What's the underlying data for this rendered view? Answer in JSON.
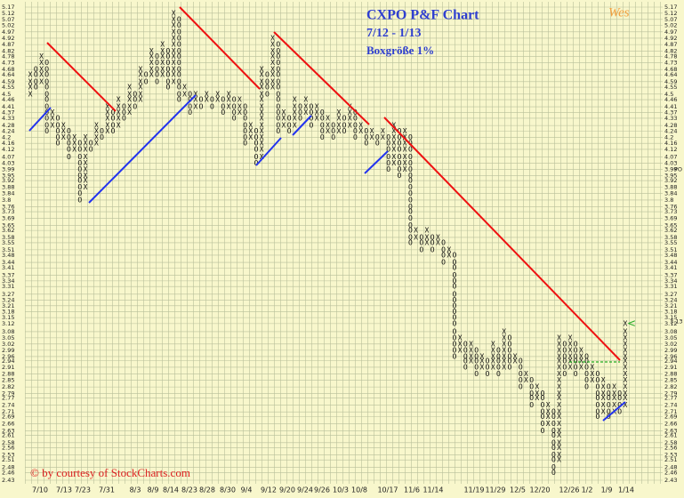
{
  "chart_data": {
    "type": "pointfigure",
    "title": "CXPO P&F Chart",
    "subtitle": "7/12 - 1/13",
    "box_size": "Boxgröße 1%",
    "logo": "Wes",
    "credit": "© by courtesy of StockCharts.com",
    "log_scale": true,
    "grid": true,
    "ylim": [
      2.43,
      5.17
    ],
    "yticks": [
      5.17,
      5.12,
      5.07,
      5.02,
      4.97,
      4.92,
      4.87,
      4.82,
      4.78,
      4.73,
      4.68,
      4.64,
      4.59,
      4.55,
      4.5,
      4.46,
      4.41,
      4.37,
      4.33,
      4.28,
      4.24,
      4.2,
      4.16,
      4.12,
      4.07,
      4.03,
      3.99,
      3.95,
      3.92,
      3.88,
      3.84,
      3.8,
      3.76,
      3.73,
      3.69,
      3.65,
      3.62,
      3.58,
      3.55,
      3.51,
      3.48,
      3.44,
      3.41,
      3.37,
      3.34,
      3.31,
      3.27,
      3.24,
      3.21,
      3.18,
      3.15,
      3.12,
      3.08,
      3.05,
      3.02,
      2.99,
      2.96,
      2.94,
      2.91,
      2.88,
      2.85,
      2.82,
      2.79,
      2.77,
      2.74,
      2.71,
      2.69,
      2.66,
      2.63,
      2.61,
      2.58,
      2.56,
      2.53,
      2.51,
      2.48,
      2.46,
      2.43
    ],
    "price_objective": {
      "value": 3.99,
      "label": "PO",
      "color": "#22aa22"
    },
    "last_price": 3.13,
    "x_labels": [
      "7/10",
      "7/13",
      "7/23",
      "7/31",
      "8/3",
      "8/9",
      "8/14",
      "8/23",
      "8/28",
      "8/30",
      "9/4",
      "9/12",
      "9/20",
      "9/24",
      "9/26",
      "10/3",
      "10/8",
      "10/17",
      "11/6",
      "11/14",
      "11/19",
      "11/29",
      "12/5",
      "12/20",
      "12/26",
      "1/2",
      "1/9",
      "1/14"
    ],
    "columns": [
      {
        "kind": "X",
        "low": 4.5,
        "high": 4.64
      },
      {
        "kind": "O",
        "low": 4.55,
        "high": 4.68
      },
      {
        "kind": "X",
        "low": 4.59,
        "high": 4.78
      },
      {
        "kind": "O",
        "low": 4.24,
        "high": 4.73
      },
      {
        "kind": "X",
        "low": 4.28,
        "high": 4.37
      },
      {
        "kind": "O",
        "low": 4.16,
        "high": 4.33
      },
      {
        "kind": "X",
        "low": 4.2,
        "high": 4.28
      },
      {
        "kind": "O",
        "low": 4.07,
        "high": 4.24
      },
      {
        "kind": "X",
        "low": 4.12,
        "high": 4.2
      },
      {
        "kind": "O",
        "low": 3.8,
        "high": 4.16
      },
      {
        "kind": "X",
        "low": 3.88,
        "high": 4.2
      },
      {
        "kind": "O",
        "low": 4.12,
        "high": 4.16
      },
      {
        "kind": "X",
        "low": 4.16,
        "high": 4.28
      },
      {
        "kind": "O",
        "low": 4.2,
        "high": 4.24
      },
      {
        "kind": "X",
        "low": 4.24,
        "high": 4.41
      },
      {
        "kind": "O",
        "low": 4.24,
        "high": 4.37
      },
      {
        "kind": "X",
        "low": 4.28,
        "high": 4.46
      },
      {
        "kind": "O",
        "low": 4.33,
        "high": 4.41
      },
      {
        "kind": "X",
        "low": 4.37,
        "high": 4.55
      },
      {
        "kind": "O",
        "low": 4.41,
        "high": 4.5
      },
      {
        "kind": "X",
        "low": 4.46,
        "high": 4.68
      },
      {
        "kind": "O",
        "low": 4.59,
        "high": 4.64
      },
      {
        "kind": "X",
        "low": 4.64,
        "high": 4.82
      },
      {
        "kind": "O",
        "low": 4.59,
        "high": 4.78
      },
      {
        "kind": "X",
        "low": 4.64,
        "high": 4.87
      },
      {
        "kind": "O",
        "low": 4.55,
        "high": 4.82
      },
      {
        "kind": "X",
        "low": 4.59,
        "high": 5.12
      },
      {
        "kind": "O",
        "low": 4.46,
        "high": 5.07
      },
      {
        "kind": "X",
        "low": 4.5,
        "high": 4.55
      },
      {
        "kind": "O",
        "low": 4.37,
        "high": 4.5
      },
      {
        "kind": "X",
        "low": 4.41,
        "high": 4.5
      },
      {
        "kind": "O",
        "low": 4.41,
        "high": 4.46
      },
      {
        "kind": "X",
        "low": 4.46,
        "high": 4.5
      },
      {
        "kind": "O",
        "low": 4.41,
        "high": 4.46
      },
      {
        "kind": "X",
        "low": 4.46,
        "high": 4.5
      },
      {
        "kind": "O",
        "low": 4.37,
        "high": 4.46
      },
      {
        "kind": "X",
        "low": 4.41,
        "high": 4.5
      },
      {
        "kind": "O",
        "low": 4.33,
        "high": 4.46
      },
      {
        "kind": "X",
        "low": 4.37,
        "high": 4.46
      },
      {
        "kind": "O",
        "low": 4.16,
        "high": 4.41
      },
      {
        "kind": "X",
        "low": 4.2,
        "high": 4.28
      },
      {
        "kind": "O",
        "low": 4.03,
        "high": 4.24
      },
      {
        "kind": "X",
        "low": 4.07,
        "high": 4.68
      },
      {
        "kind": "O",
        "low": 4.5,
        "high": 4.64
      },
      {
        "kind": "X",
        "low": 4.55,
        "high": 4.92
      },
      {
        "kind": "O",
        "low": 4.24,
        "high": 4.87
      },
      {
        "kind": "X",
        "low": 4.28,
        "high": 4.37
      },
      {
        "kind": "O",
        "low": 4.24,
        "high": 4.33
      },
      {
        "kind": "X",
        "low": 4.28,
        "high": 4.46
      },
      {
        "kind": "O",
        "low": 4.33,
        "high": 4.41
      },
      {
        "kind": "X",
        "low": 4.37,
        "high": 4.46
      },
      {
        "kind": "O",
        "low": 4.28,
        "high": 4.41
      },
      {
        "kind": "X",
        "low": 4.33,
        "high": 4.41
      },
      {
        "kind": "O",
        "low": 4.2,
        "high": 4.37
      },
      {
        "kind": "X",
        "low": 4.24,
        "high": 4.33
      },
      {
        "kind": "O",
        "low": 4.2,
        "high": 4.28
      },
      {
        "kind": "X",
        "low": 4.24,
        "high": 4.37
      },
      {
        "kind": "O",
        "low": 4.24,
        "high": 4.33
      },
      {
        "kind": "X",
        "low": 4.28,
        "high": 4.41
      },
      {
        "kind": "O",
        "low": 4.2,
        "high": 4.37
      },
      {
        "kind": "X",
        "low": 4.24,
        "high": 4.28
      },
      {
        "kind": "O",
        "low": 4.16,
        "high": 4.24
      },
      {
        "kind": "X",
        "low": 4.2,
        "high": 4.24
      },
      {
        "kind": "O",
        "low": 4.16,
        "high": 4.2
      },
      {
        "kind": "X",
        "low": 4.2,
        "high": 4.24
      },
      {
        "kind": "O",
        "low": 3.99,
        "high": 4.2
      },
      {
        "kind": "X",
        "low": 4.03,
        "high": 4.28
      },
      {
        "kind": "O",
        "low": 3.95,
        "high": 4.24
      },
      {
        "kind": "X",
        "low": 3.99,
        "high": 4.24
      },
      {
        "kind": "O",
        "low": 3.55,
        "high": 4.2
      },
      {
        "kind": "X",
        "low": 3.58,
        "high": 3.62
      },
      {
        "kind": "O",
        "low": 3.51,
        "high": 3.58
      },
      {
        "kind": "X",
        "low": 3.55,
        "high": 3.62
      },
      {
        "kind": "O",
        "low": 3.51,
        "high": 3.58
      },
      {
        "kind": "X",
        "low": 3.55,
        "high": 3.58
      },
      {
        "kind": "O",
        "low": 3.44,
        "high": 3.55
      },
      {
        "kind": "X",
        "low": 3.48,
        "high": 3.51
      },
      {
        "kind": "O",
        "low": 2.96,
        "high": 3.48
      },
      {
        "kind": "X",
        "low": 2.99,
        "high": 3.05
      },
      {
        "kind": "O",
        "low": 2.91,
        "high": 3.02
      },
      {
        "kind": "X",
        "low": 2.94,
        "high": 3.02
      },
      {
        "kind": "O",
        "low": 2.88,
        "high": 2.99
      },
      {
        "kind": "X",
        "low": 2.91,
        "high": 2.96
      },
      {
        "kind": "O",
        "low": 2.88,
        "high": 2.94
      },
      {
        "kind": "X",
        "low": 2.91,
        "high": 3.02
      },
      {
        "kind": "O",
        "low": 2.88,
        "high": 2.99
      },
      {
        "kind": "X",
        "low": 2.91,
        "high": 3.08
      },
      {
        "kind": "O",
        "low": 2.91,
        "high": 3.05
      },
      {
        "kind": "X",
        "low": 2.94,
        "high": 2.96
      },
      {
        "kind": "O",
        "low": 2.82,
        "high": 2.94
      },
      {
        "kind": "X",
        "low": 2.85,
        "high": 2.88
      },
      {
        "kind": "O",
        "low": 2.74,
        "high": 2.85
      },
      {
        "kind": "X",
        "low": 2.77,
        "high": 2.82
      },
      {
        "kind": "O",
        "low": 2.63,
        "high": 2.79
      },
      {
        "kind": "X",
        "low": 2.66,
        "high": 2.74
      },
      {
        "kind": "O",
        "low": 2.46,
        "high": 2.71
      },
      {
        "kind": "X",
        "low": 2.51,
        "high": 3.05
      },
      {
        "kind": "O",
        "low": 2.88,
        "high": 3.02
      },
      {
        "kind": "X",
        "low": 2.91,
        "high": 3.05
      },
      {
        "kind": "O",
        "low": 2.88,
        "high": 3.02
      },
      {
        "kind": "X",
        "low": 2.91,
        "high": 2.99
      },
      {
        "kind": "O",
        "low": 2.82,
        "high": 2.96
      },
      {
        "kind": "X",
        "low": 2.85,
        "high": 2.91
      },
      {
        "kind": "O",
        "low": 2.69,
        "high": 2.88
      },
      {
        "kind": "X",
        "low": 2.71,
        "high": 2.85
      },
      {
        "kind": "O",
        "low": 2.69,
        "high": 2.82
      },
      {
        "kind": "X",
        "low": 2.71,
        "high": 2.82
      },
      {
        "kind": "O",
        "low": 2.71,
        "high": 2.79
      },
      {
        "kind": "X",
        "low": 2.74,
        "high": 3.12
      }
    ]
  }
}
